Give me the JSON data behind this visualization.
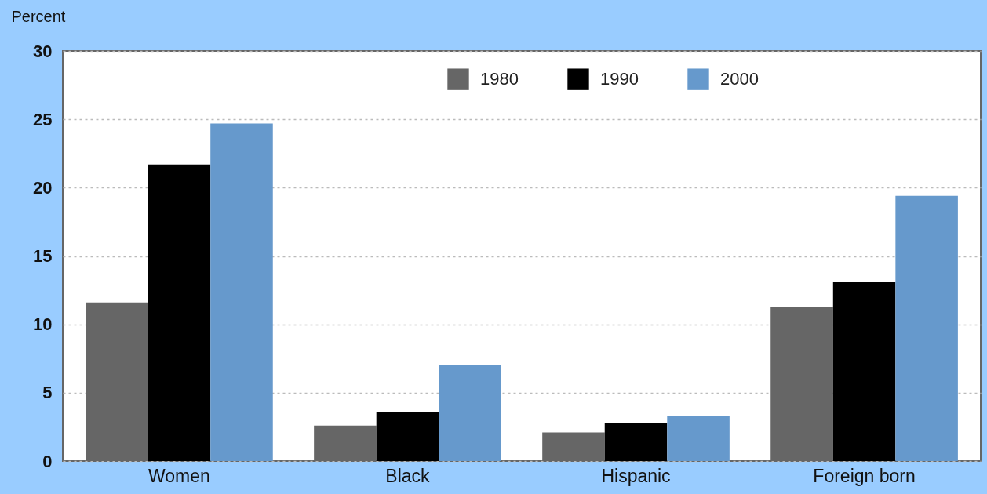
{
  "chart_data": {
    "type": "bar",
    "ylabel": "Percent",
    "categories": [
      "Women",
      "Black",
      "Hispanic",
      "Foreign born"
    ],
    "series": [
      {
        "name": "1980",
        "color": "#666666",
        "values": [
          11.6,
          2.6,
          2.1,
          11.3
        ]
      },
      {
        "name": "1990",
        "color": "#000000",
        "values": [
          21.7,
          3.6,
          2.8,
          13.1
        ]
      },
      {
        "name": "2000",
        "color": "#6699cc",
        "values": [
          24.7,
          7.0,
          3.3,
          19.4
        ]
      }
    ],
    "ylim": [
      0,
      30
    ],
    "yticks": [
      0,
      5,
      10,
      15,
      20,
      25,
      30
    ],
    "grid": "y",
    "legend": "top"
  }
}
